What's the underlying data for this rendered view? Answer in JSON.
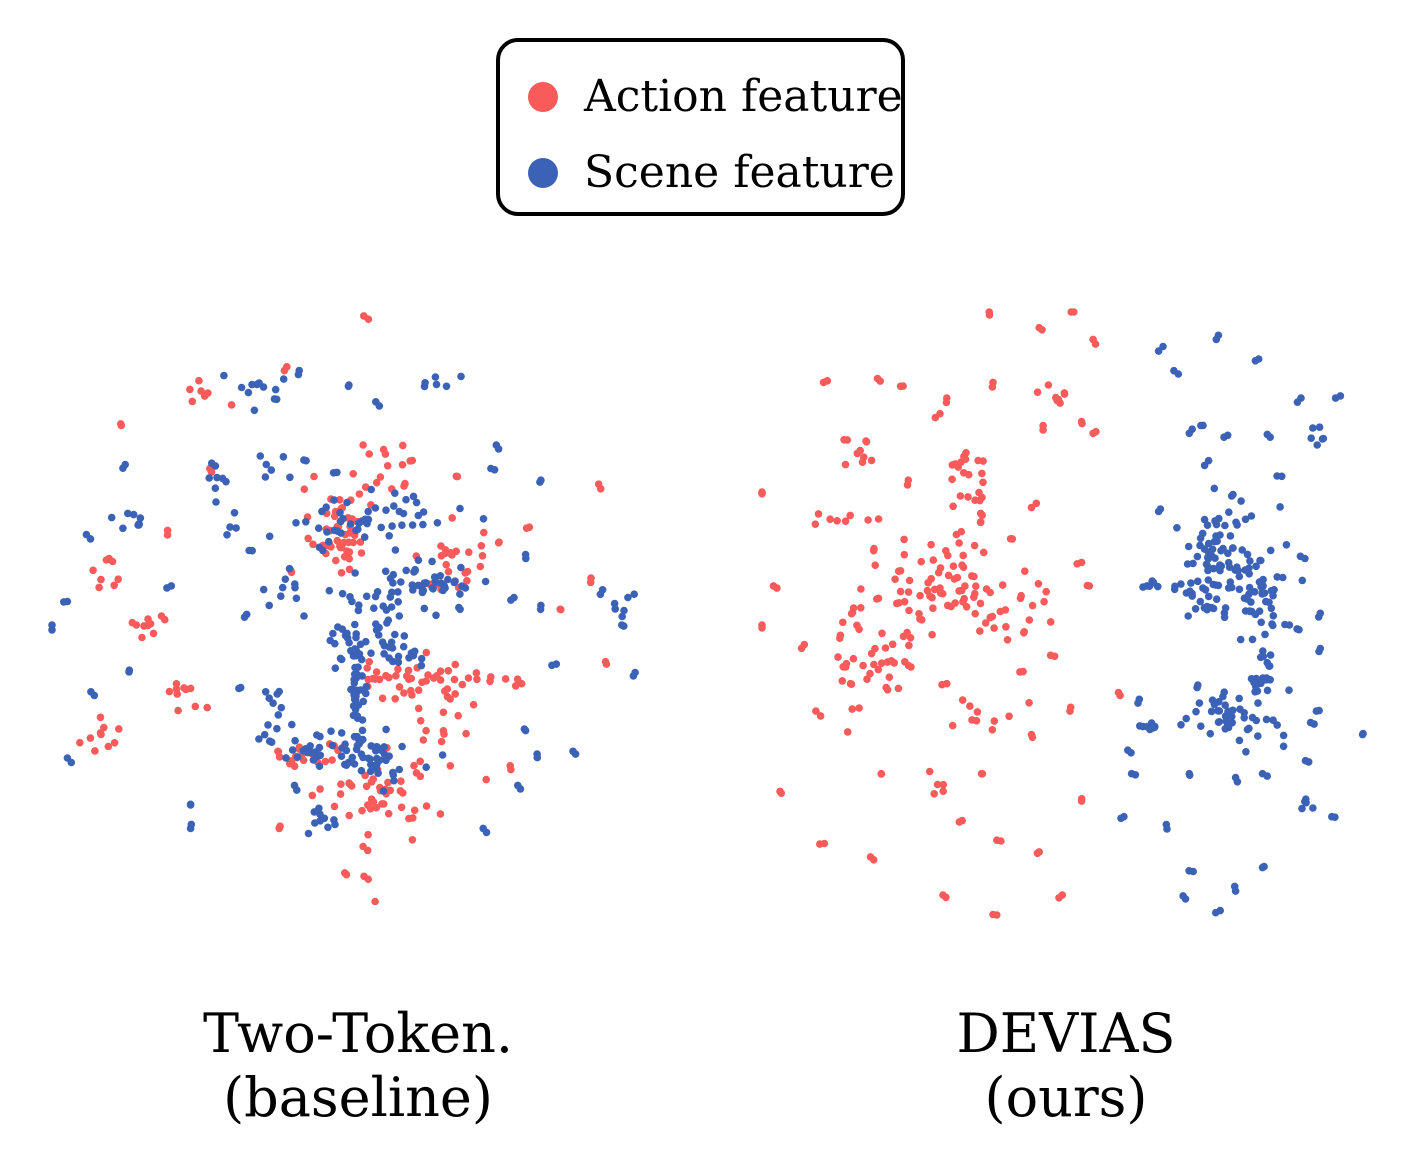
{
  "legend": {
    "items": [
      {
        "label": "Action feature",
        "color": "#f95a5a"
      },
      {
        "label": "Scene feature",
        "color": "#3b62b6"
      }
    ]
  },
  "chart_data": [
    {
      "type": "scatter",
      "title_line1": "Two-Token.",
      "title_line2": "(baseline)",
      "xlim": [
        -8,
        8
      ],
      "ylim": [
        -8,
        8
      ],
      "grid": false,
      "legend_placement": "top-center",
      "series": [
        {
          "name": "Action feature",
          "color": "#f95a5a",
          "clusters": [
            {
              "x": -0.6,
              "y": 2.4,
              "sx": 0.35,
              "sy": 0.55,
              "n": 45
            },
            {
              "x": 2.4,
              "y": 1.6,
              "sx": 0.4,
              "sy": 0.45,
              "n": 25
            },
            {
              "x": 1.3,
              "y": -1.4,
              "sx": 0.9,
              "sy": 0.35,
              "n": 40
            },
            {
              "x": 0.7,
              "y": -4.3,
              "sx": 0.8,
              "sy": 0.45,
              "n": 45
            },
            {
              "x": 0.5,
              "y": 4.0,
              "sx": 0.6,
              "sy": 0.5,
              "n": 20
            },
            {
              "x": -1.5,
              "y": -3.3,
              "sx": 0.55,
              "sy": 0.2,
              "n": 20
            },
            {
              "x": -4.5,
              "y": -1.7,
              "sx": 0.3,
              "sy": 0.4,
              "n": 10
            },
            {
              "x": -5.4,
              "y": 0.0,
              "sx": 0.35,
              "sy": 0.15,
              "n": 10
            },
            {
              "x": -6.7,
              "y": -2.9,
              "sx": 0.3,
              "sy": 0.2,
              "n": 10
            },
            {
              "x": -6.5,
              "y": 1.2,
              "sx": 0.2,
              "sy": 0.35,
              "n": 8
            },
            {
              "x": 0.1,
              "y": -6.4,
              "sx": 0.2,
              "sy": 0.6,
              "n": 8
            },
            {
              "x": 2.3,
              "y": -2.8,
              "sx": 0.5,
              "sy": 0.3,
              "n": 10
            },
            {
              "x": 3.0,
              "y": -1.3,
              "sx": 0.5,
              "sy": 0.15,
              "n": 10
            },
            {
              "x": -4.0,
              "y": 6.1,
              "sx": 0.4,
              "sy": 0.3,
              "n": 8
            }
          ],
          "scatter_points": [
            [
              0.1,
              7.9
            ],
            [
              -1.9,
              6.6
            ],
            [
              2.5,
              3.8
            ],
            [
              6.2,
              3.6
            ],
            [
              -6.2,
              5.1
            ],
            [
              -5.0,
              2.3
            ],
            [
              -2.1,
              -5.2
            ],
            [
              5.2,
              0.4
            ],
            [
              4.2,
              -1.5
            ],
            [
              3.6,
              2.1
            ],
            [
              4.4,
              2.5
            ],
            [
              6.0,
              1.2
            ],
            [
              -1.8,
              1.4
            ],
            [
              -3.9,
              4.0
            ],
            [
              3.9,
              -3.6
            ],
            [
              6.4,
              -1.0
            ]
          ]
        },
        {
          "name": "Scene feature",
          "color": "#3b62b6",
          "clusters": [
            {
              "x": -0.1,
              "y": 2.6,
              "sx": 1.3,
              "sy": 0.35,
              "n": 45
            },
            {
              "x": 1.4,
              "y": 1.0,
              "sx": 1.0,
              "sy": 0.35,
              "n": 55
            },
            {
              "x": 0.6,
              "y": -0.4,
              "sx": 0.8,
              "sy": 0.4,
              "n": 50
            },
            {
              "x": -0.1,
              "y": -1.6,
              "sx": 0.15,
              "sy": 0.7,
              "n": 35
            },
            {
              "x": -0.5,
              "y": -3.1,
              "sx": 0.9,
              "sy": 0.25,
              "n": 50
            },
            {
              "x": 0.4,
              "y": -3.6,
              "sx": 0.5,
              "sy": 0.3,
              "n": 25
            },
            {
              "x": -1.0,
              "y": -5.0,
              "sx": 0.3,
              "sy": 0.2,
              "n": 10
            },
            {
              "x": -2.6,
              "y": 6.0,
              "sx": 0.6,
              "sy": 0.25,
              "n": 12
            },
            {
              "x": -3.7,
              "y": 3.8,
              "sx": 0.2,
              "sy": 0.2,
              "n": 8
            },
            {
              "x": -5.8,
              "y": 2.7,
              "sx": 0.35,
              "sy": 0.12,
              "n": 8
            },
            {
              "x": 1.9,
              "y": 6.2,
              "sx": 0.25,
              "sy": 0.15,
              "n": 6
            },
            {
              "x": -2.3,
              "y": -2.2,
              "sx": 0.15,
              "sy": 0.5,
              "n": 8
            },
            {
              "x": 6.9,
              "y": 0.5,
              "sx": 0.25,
              "sy": 0.15,
              "n": 6
            },
            {
              "x": -1.9,
              "y": 1.0,
              "sx": 0.6,
              "sy": 0.25,
              "n": 10
            },
            {
              "x": 0.8,
              "y": 3.2,
              "sx": 0.4,
              "sy": 0.2,
              "n": 8
            },
            {
              "x": -2.2,
              "y": 4.0,
              "sx": 0.3,
              "sy": 0.2,
              "n": 6
            }
          ],
          "scatter_points": [
            [
              -8.0,
              0.0
            ],
            [
              -7.6,
              0.6
            ],
            [
              -7.6,
              -3.4
            ],
            [
              -6.9,
              -1.8
            ],
            [
              -6.0,
              -1.2
            ],
            [
              -6.1,
              4.1
            ],
            [
              -7.0,
              2.2
            ],
            [
              -4.9,
              1.0
            ],
            [
              -4.4,
              -4.6
            ],
            [
              -3.0,
              0.2
            ],
            [
              -3.1,
              -1.6
            ],
            [
              -2.1,
              -1.7
            ],
            [
              -1.6,
              6.4
            ],
            [
              -0.3,
              6.1
            ],
            [
              0.5,
              5.6
            ],
            [
              -1.4,
              4.2
            ],
            [
              -1.7,
              -4.1
            ],
            [
              -2.8,
              1.9
            ],
            [
              3.6,
              4.5
            ],
            [
              3.4,
              4.0
            ],
            [
              4.7,
              3.7
            ],
            [
              4.3,
              1.8
            ],
            [
              4.0,
              0.7
            ],
            [
              4.7,
              0.5
            ],
            [
              2.6,
              0.4
            ],
            [
              6.3,
              0.9
            ],
            [
              6.8,
              0.0
            ],
            [
              5.1,
              -1.0
            ],
            [
              4.3,
              -2.7
            ],
            [
              4.6,
              -3.3
            ],
            [
              5.6,
              -3.3
            ],
            [
              3.2,
              -5.2
            ],
            [
              -4.4,
              -5.2
            ],
            [
              7.1,
              -1.3
            ],
            [
              4.1,
              -4.1
            ],
            [
              -0.6,
              3.9
            ]
          ]
        }
      ]
    },
    {
      "type": "scatter",
      "title_line1": "DEVIAS",
      "title_line2": "(ours)",
      "xlim": [
        -8,
        8
      ],
      "ylim": [
        -8,
        8
      ],
      "grid": false,
      "legend_placement": "top-center",
      "series": [
        {
          "name": "Action feature",
          "color": "#f95a5a",
          "clusters": [
            {
              "x": -3.3,
              "y": 1.1,
              "sx": 0.7,
              "sy": 0.6,
              "n": 55
            },
            {
              "x": -5.0,
              "y": -0.5,
              "sx": 0.5,
              "sy": 0.9,
              "n": 50
            },
            {
              "x": -2.6,
              "y": 3.3,
              "sx": 0.4,
              "sy": 0.5,
              "n": 15
            },
            {
              "x": -5.5,
              "y": 4.5,
              "sx": 0.3,
              "sy": 0.3,
              "n": 8
            },
            {
              "x": -2.1,
              "y": 0.3,
              "sx": 0.4,
              "sy": 0.35,
              "n": 15
            },
            {
              "x": -2.3,
              "y": -2.3,
              "sx": 0.55,
              "sy": 0.3,
              "n": 10
            },
            {
              "x": -0.3,
              "y": 6.0,
              "sx": 0.4,
              "sy": 0.2,
              "n": 8
            },
            {
              "x": -1.1,
              "y": 0.6,
              "sx": 0.5,
              "sy": 0.3,
              "n": 10
            },
            {
              "x": -5.9,
              "y": 2.7,
              "sx": 0.5,
              "sy": 0.1,
              "n": 8
            },
            {
              "x": -2.6,
              "y": 3.9,
              "sx": 0.2,
              "sy": 0.3,
              "n": 8
            },
            {
              "x": -3.6,
              "y": -4.1,
              "sx": 0.2,
              "sy": 0.15,
              "n": 5
            }
          ],
          "scatter_points": [
            [
              -2.1,
              8.0
            ],
            [
              0.1,
              8.1
            ],
            [
              -0.8,
              7.6
            ],
            [
              0.6,
              7.3
            ],
            [
              -6.4,
              6.2
            ],
            [
              -5.0,
              6.3
            ],
            [
              -3.5,
              5.3
            ],
            [
              -2.0,
              6.2
            ],
            [
              -4.2,
              3.7
            ],
            [
              -2.7,
              4.4
            ],
            [
              0.6,
              4.9
            ],
            [
              -1.0,
              3.0
            ],
            [
              -5.1,
              1.9
            ],
            [
              -8.1,
              0.0
            ],
            [
              -5.7,
              -1.5
            ],
            [
              -3.2,
              -1.5
            ],
            [
              -1.3,
              -1.2
            ],
            [
              -0.4,
              -0.8
            ],
            [
              -1.0,
              -2.8
            ],
            [
              -6.6,
              -2.2
            ],
            [
              -7.5,
              -4.3
            ],
            [
              -4.9,
              -3.8
            ],
            [
              -2.3,
              -3.8
            ],
            [
              -5.1,
              -6.0
            ],
            [
              -3.3,
              -6.9
            ],
            [
              -6.5,
              -5.6
            ],
            [
              -1.9,
              -5.5
            ],
            [
              0.3,
              -4.5
            ],
            [
              -0.8,
              -5.8
            ],
            [
              -0.2,
              -6.9
            ],
            [
              -2.0,
              -7.4
            ],
            [
              0.3,
              1.6
            ],
            [
              1.3,
              -1.8
            ],
            [
              -0.7,
              5.1
            ],
            [
              0.5,
              1.0
            ],
            [
              -5.3,
              4.7
            ],
            [
              -8.0,
              3.4
            ],
            [
              -3.2,
              5.8
            ],
            [
              0.0,
              -2.2
            ],
            [
              -1.2,
              -0.2
            ],
            [
              -2.8,
              -5.0
            ],
            [
              -4.4,
              6.1
            ],
            [
              -7.7,
              1.0
            ],
            [
              0.3,
              5.2
            ],
            [
              -1.5,
              2.2
            ],
            [
              -6.9,
              -0.5
            ]
          ]
        },
        {
          "name": "Scene feature",
          "color": "#3b62b6",
          "clusters": [
            {
              "x": 3.6,
              "y": 1.8,
              "sx": 0.4,
              "sy": 0.6,
              "n": 40
            },
            {
              "x": 4.6,
              "y": 1.2,
              "sx": 0.55,
              "sy": 0.45,
              "n": 45
            },
            {
              "x": 4.9,
              "y": 0.2,
              "sx": 0.25,
              "sy": 0.5,
              "n": 20
            },
            {
              "x": 4.3,
              "y": -2.3,
              "sx": 0.7,
              "sy": 0.35,
              "n": 55
            },
            {
              "x": 3.3,
              "y": 0.6,
              "sx": 0.35,
              "sy": 0.4,
              "n": 15
            },
            {
              "x": 5.0,
              "y": -1.2,
              "sx": 0.2,
              "sy": 0.4,
              "n": 12
            },
            {
              "x": 6.4,
              "y": 4.9,
              "sx": 0.15,
              "sy": 0.2,
              "n": 6
            },
            {
              "x": 2.1,
              "y": -2.7,
              "sx": 0.3,
              "sy": 0.1,
              "n": 6
            },
            {
              "x": 6.1,
              "y": -4.6,
              "sx": 0.1,
              "sy": 0.15,
              "n": 5
            },
            {
              "x": 2.6,
              "y": 1.0,
              "sx": 0.3,
              "sy": 0.1,
              "n": 6
            },
            {
              "x": 4.9,
              "y": 3.0,
              "sx": 0.4,
              "sy": 0.2,
              "n": 8
            }
          ],
          "scatter_points": [
            [
              3.8,
              7.3
            ],
            [
              4.9,
              6.8
            ],
            [
              2.7,
              6.5
            ],
            [
              2.3,
              7.0
            ],
            [
              6.0,
              5.8
            ],
            [
              6.9,
              5.8
            ],
            [
              3.4,
              5.1
            ],
            [
              3.6,
              4.2
            ],
            [
              4.0,
              4.8
            ],
            [
              5.2,
              4.8
            ],
            [
              3.1,
              4.9
            ],
            [
              5.5,
              3.8
            ],
            [
              2.0,
              1.0
            ],
            [
              2.3,
              2.9
            ],
            [
              4.2,
              3.3
            ],
            [
              6.1,
              1.7
            ],
            [
              6.5,
              0.3
            ],
            [
              5.7,
              0.0
            ],
            [
              5.9,
              -0.1
            ],
            [
              6.5,
              -0.6
            ],
            [
              5.3,
              0.9
            ],
            [
              3.3,
              -1.6
            ],
            [
              5.2,
              -1.4
            ],
            [
              2.0,
              -2.6
            ],
            [
              7.6,
              -2.8
            ],
            [
              6.2,
              -3.5
            ],
            [
              5.0,
              -3.8
            ],
            [
              4.3,
              -3.9
            ],
            [
              3.1,
              -3.8
            ],
            [
              1.5,
              -3.2
            ],
            [
              1.6,
              -3.8
            ],
            [
              1.4,
              -4.9
            ],
            [
              2.5,
              -5.1
            ],
            [
              3.2,
              -6.3
            ],
            [
              5.0,
              -6.2
            ],
            [
              6.8,
              -4.9
            ],
            [
              3.9,
              -7.3
            ],
            [
              3.0,
              -7.0
            ],
            [
              4.3,
              -6.8
            ],
            [
              1.8,
              -1.9
            ],
            [
              6.4,
              -2.2
            ]
          ]
        }
      ]
    }
  ]
}
